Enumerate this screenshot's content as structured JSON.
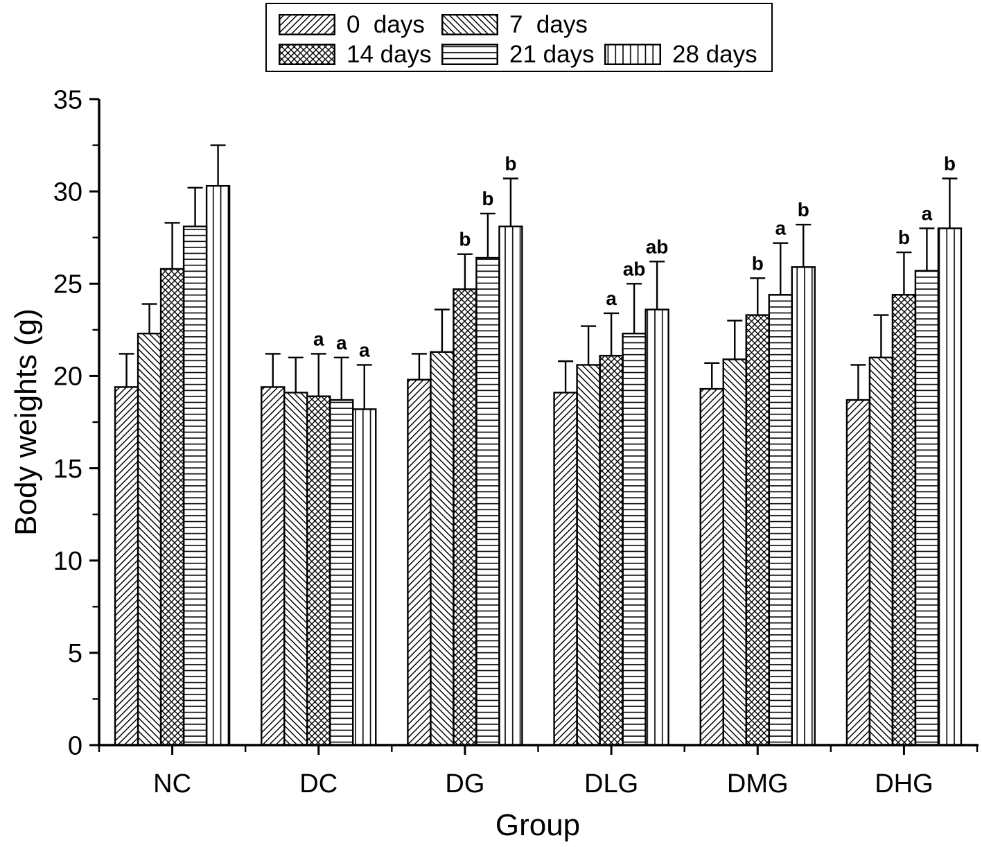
{
  "figure": {
    "background": "#ffffff",
    "ink_color": "#000000"
  },
  "chart_data": {
    "type": "bar",
    "title": "",
    "xlabel": "Group",
    "ylabel": "Body weights (g)",
    "ylim": [
      0,
      35
    ],
    "yticks": [
      0,
      5,
      10,
      15,
      20,
      25,
      30,
      35
    ],
    "y_minor_step": 2.5,
    "grid": false,
    "legend_position": "top-center",
    "error_bars": "upper-with-cap",
    "categories": [
      "NC",
      "DC",
      "DG",
      "DLG",
      "DMG",
      "DHG"
    ],
    "series": [
      {
        "name": "0  days",
        "hatch": "diag-up",
        "values": [
          19.4,
          19.4,
          19.8,
          19.1,
          19.3,
          18.7
        ],
        "errors": [
          1.8,
          1.8,
          1.4,
          1.7,
          1.4,
          1.9
        ],
        "letters": [
          "",
          "",
          "",
          "",
          "",
          ""
        ]
      },
      {
        "name": "7  days",
        "hatch": "diag-down",
        "values": [
          22.3,
          19.1,
          21.3,
          20.6,
          20.9,
          21.0
        ],
        "errors": [
          1.6,
          1.9,
          2.3,
          2.1,
          2.1,
          2.3
        ],
        "letters": [
          "",
          "",
          "",
          "",
          "",
          ""
        ]
      },
      {
        "name": "14 days",
        "hatch": "cross",
        "values": [
          25.8,
          18.9,
          24.7,
          21.1,
          23.3,
          24.4
        ],
        "errors": [
          2.5,
          2.3,
          1.9,
          2.3,
          2.0,
          2.3
        ],
        "letters": [
          "",
          "a",
          "b",
          "a",
          "b",
          "b"
        ]
      },
      {
        "name": "21 days",
        "hatch": "horizontal",
        "values": [
          28.1,
          18.7,
          26.4,
          22.3,
          24.4,
          25.7
        ],
        "errors": [
          2.1,
          2.3,
          2.4,
          2.7,
          2.8,
          2.3
        ],
        "letters": [
          "",
          "a",
          "b",
          "ab",
          "a",
          "a"
        ]
      },
      {
        "name": "28 days",
        "hatch": "vertical",
        "values": [
          30.3,
          18.2,
          28.1,
          23.6,
          25.9,
          28.0
        ],
        "errors": [
          2.2,
          2.4,
          2.6,
          2.6,
          2.3,
          2.7
        ],
        "letters": [
          "",
          "a",
          "b",
          "ab",
          "b",
          "b"
        ]
      }
    ],
    "legend_rows": [
      [
        0,
        1
      ],
      [
        2,
        3,
        4
      ]
    ]
  }
}
